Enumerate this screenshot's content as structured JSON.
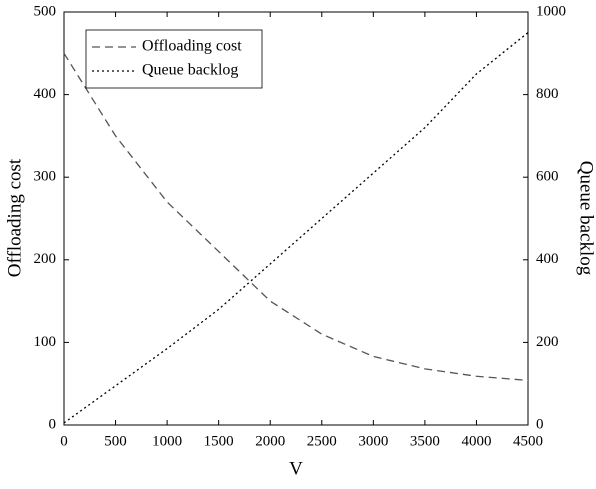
{
  "chart_data": {
    "type": "line",
    "x_label": "V",
    "y_label": "Offloading cost",
    "y2_label": "Queue backlog",
    "x": [
      0,
      500,
      1000,
      1500,
      2000,
      2500,
      3000,
      3500,
      4000,
      4500
    ],
    "series": [
      {
        "name": "Offloading cost",
        "color": "#555555",
        "linestyle": "dashed",
        "axis": "y",
        "values": [
          450,
          350,
          270,
          210,
          150,
          110,
          83,
          68,
          59,
          54
        ]
      },
      {
        "name": "Queue backlog",
        "color": "#000000",
        "linestyle": "dotted",
        "axis": "y2",
        "values": [
          5,
          95,
          185,
          280,
          390,
          500,
          610,
          720,
          850,
          950
        ]
      }
    ],
    "xlim": [
      0,
      4500
    ],
    "xticks": [
      0,
      500,
      1000,
      1500,
      2000,
      2500,
      3000,
      3500,
      4000,
      4500
    ],
    "ylim": [
      0,
      500
    ],
    "yticks": [
      0,
      100,
      200,
      300,
      400,
      500
    ],
    "y2lim": [
      0,
      1000
    ],
    "y2ticks": [
      0,
      200,
      400,
      600,
      800,
      1000
    ],
    "legend": "upper left",
    "grid": false
  }
}
